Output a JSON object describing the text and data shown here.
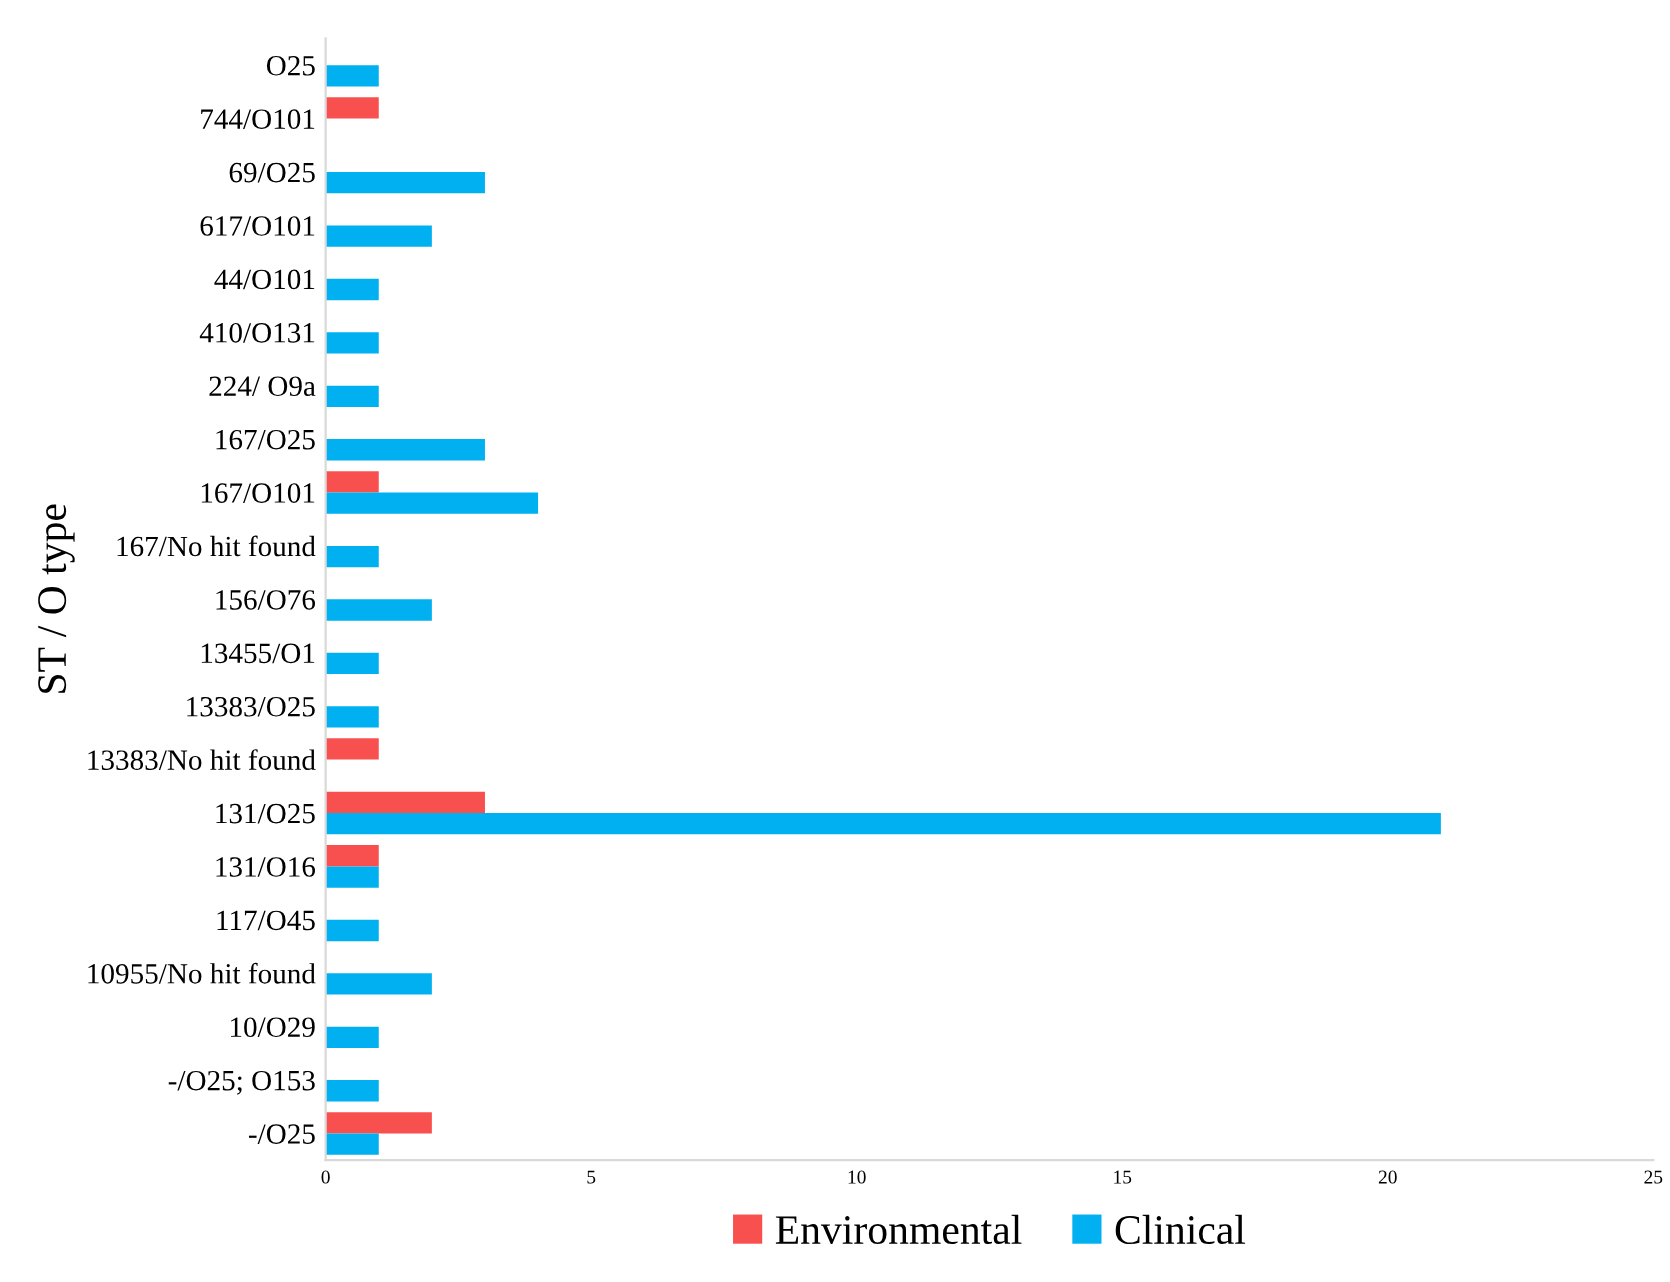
{
  "chart_data": {
    "type": "bar",
    "orientation": "horizontal",
    "ylabel": "ST / O type",
    "categories": [
      "O25",
      "744/O101",
      "69/O25",
      "617/O101",
      "44/O101",
      "410/O131",
      "224/ O9a",
      "167/O25",
      "167/O101",
      "167/No hit found",
      "156/O76",
      "13455/O1",
      "13383/O25",
      "13383/No hit found",
      "131/O25",
      "131/O16",
      "117/O45",
      "10955/No hit found",
      "10/O29",
      "-/O25; O153",
      "-/O25"
    ],
    "series": [
      {
        "name": "Environmental",
        "color": "#f8504f",
        "values": [
          null,
          1,
          null,
          null,
          null,
          null,
          null,
          null,
          1,
          null,
          null,
          null,
          null,
          1,
          3,
          1,
          null,
          null,
          null,
          null,
          2
        ]
      },
      {
        "name": "Clinical",
        "color": "#00b0f0",
        "values": [
          1,
          null,
          3,
          2,
          1,
          1,
          1,
          3,
          4,
          1,
          2,
          1,
          1,
          null,
          21,
          1,
          1,
          2,
          1,
          1,
          1
        ]
      }
    ],
    "xlim": [
      0,
      25
    ],
    "xticks": [
      0,
      5,
      10,
      15,
      20,
      25
    ],
    "grid": false,
    "legend": "bottom"
  }
}
